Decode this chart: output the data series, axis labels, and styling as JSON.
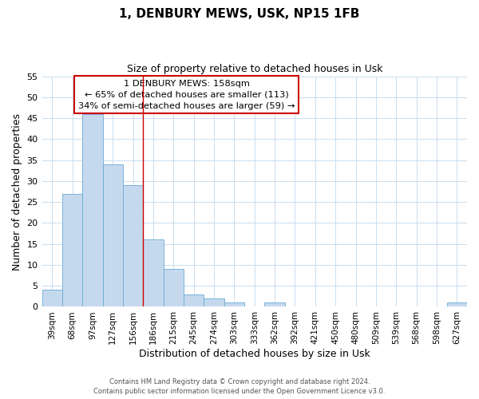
{
  "title": "1, DENBURY MEWS, USK, NP15 1FB",
  "subtitle": "Size of property relative to detached houses in Usk",
  "xlabel": "Distribution of detached houses by size in Usk",
  "ylabel": "Number of detached properties",
  "bin_labels": [
    "39sqm",
    "68sqm",
    "97sqm",
    "127sqm",
    "156sqm",
    "186sqm",
    "215sqm",
    "245sqm",
    "274sqm",
    "303sqm",
    "333sqm",
    "362sqm",
    "392sqm",
    "421sqm",
    "450sqm",
    "480sqm",
    "509sqm",
    "539sqm",
    "568sqm",
    "598sqm",
    "627sqm"
  ],
  "bar_values": [
    4,
    27,
    46,
    34,
    29,
    16,
    9,
    3,
    2,
    1,
    0,
    1,
    0,
    0,
    0,
    0,
    0,
    0,
    0,
    0,
    1
  ],
  "bar_color": "#c5d9ee",
  "bar_edge_color": "#6aaad4",
  "annotation_line1": "1 DENBURY MEWS: 158sqm",
  "annotation_line2": "← 65% of detached houses are smaller (113)",
  "annotation_line3": "34% of semi-detached houses are larger (59) →",
  "annotation_box_color": "#cc0000",
  "vline_x": 4.5,
  "vline_color": "#cc0000",
  "ylim": [
    0,
    55
  ],
  "yticks": [
    0,
    5,
    10,
    15,
    20,
    25,
    30,
    35,
    40,
    45,
    50,
    55
  ],
  "footer_line1": "Contains HM Land Registry data © Crown copyright and database right 2024.",
  "footer_line2": "Contains public sector information licensed under the Open Government Licence v3.0.",
  "bg_color": "#ffffff",
  "grid_color": "#c8ddf0"
}
